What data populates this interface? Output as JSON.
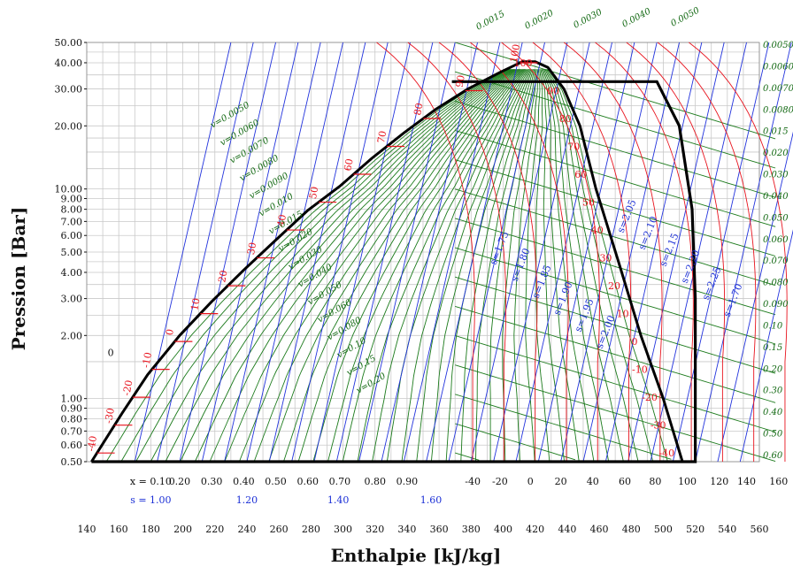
{
  "chart_data": {
    "type": "line",
    "title": "",
    "xlabel": "Enthalpie [kJ/kg]",
    "ylabel": "Pression [Bar]",
    "xlim": [
      140,
      560
    ],
    "ylim": [
      0.5,
      50
    ],
    "y_scale": "log",
    "x_ticks": [
      "140",
      "160",
      "180",
      "200",
      "220",
      "240",
      "260",
      "280",
      "300",
      "320",
      "340",
      "360",
      "380",
      "400",
      "420",
      "440",
      "460",
      "480",
      "500",
      "520",
      "540",
      "560"
    ],
    "y_ticks": [
      {
        "p": 50,
        "label": "50.00"
      },
      {
        "p": 40,
        "label": "40.00"
      },
      {
        "p": 30,
        "label": "30.00"
      },
      {
        "p": 20,
        "label": "20.00"
      },
      {
        "p": 10,
        "label": "10.00"
      },
      {
        "p": 9,
        "label": "9.00"
      },
      {
        "p": 8,
        "label": "8.00"
      },
      {
        "p": 7,
        "label": "7.00"
      },
      {
        "p": 6,
        "label": "6.00"
      },
      {
        "p": 5,
        "label": "5.00"
      },
      {
        "p": 4,
        "label": "4.00"
      },
      {
        "p": 3,
        "label": "3.00"
      },
      {
        "p": 2,
        "label": "2.00"
      },
      {
        "p": 1,
        "label": "1.00"
      },
      {
        "p": 0.9,
        "label": "0.90"
      },
      {
        "p": 0.8,
        "label": "0.80"
      },
      {
        "p": 0.7,
        "label": "0.70"
      },
      {
        "p": 0.6,
        "label": "0.60"
      },
      {
        "p": 0.5,
        "label": "0.50"
      }
    ],
    "quality_labels": [
      {
        "text": "x = 0.10",
        "h": 180
      },
      {
        "text": "0.20",
        "h": 198
      },
      {
        "text": "0.30",
        "h": 218
      },
      {
        "text": "0.40",
        "h": 238
      },
      {
        "text": "0.50",
        "h": 258
      },
      {
        "text": "0.60",
        "h": 278
      },
      {
        "text": "0.70",
        "h": 298
      },
      {
        "text": "0.80",
        "h": 320
      },
      {
        "text": "0.90",
        "h": 340
      }
    ],
    "entropy_bottom_labels": [
      {
        "text": "s = 1.00",
        "h": 180
      },
      {
        "text": "1.20",
        "h": 240
      },
      {
        "text": "1.40",
        "h": 297
      },
      {
        "text": "1.60",
        "h": 355
      }
    ],
    "temperature_bottom_labels": [
      {
        "text": "-40",
        "h": 381
      },
      {
        "text": "-20",
        "h": 398
      },
      {
        "text": "0",
        "h": 417
      },
      {
        "text": "20",
        "h": 436
      },
      {
        "text": "40",
        "h": 456
      },
      {
        "text": "60",
        "h": 476
      },
      {
        "text": "80",
        "h": 495
      },
      {
        "text": "100",
        "h": 515
      },
      {
        "text": "120",
        "h": 535
      },
      {
        "text": "140",
        "h": 552
      },
      {
        "text": "160",
        "h": 572
      }
    ],
    "liquid_side_temperatures": [
      "-40",
      "-30",
      "-20",
      "-10",
      "0",
      "10",
      "20",
      "30",
      "40",
      "50",
      "60",
      "70",
      "80",
      "90",
      "100"
    ],
    "vapor_side_temperatures": [
      "100",
      "90",
      "80",
      "70",
      "60",
      "50",
      "40",
      "30",
      "20",
      "10",
      "0",
      "-10",
      "-20",
      "-30",
      "-40"
    ],
    "specific_volume_right_labels": [
      "0.0050",
      "0.0060",
      "0.0070",
      "0.0080",
      "0.015",
      "0.020",
      "0.030",
      "0.040",
      "0.050",
      "0.060",
      "0.070",
      "0.080",
      "0.090",
      "0.10",
      "0.15",
      "0.20",
      "0.30",
      "0.40",
      "0.50",
      "0.60"
    ],
    "specific_volume_top_labels": [
      "0.0015",
      "0.0020",
      "0.0030",
      "0.0040",
      "0.0050"
    ],
    "specific_volume_inside_labels": [
      "v=0.0050",
      "v=0.0060",
      "v=0.0070",
      "v=0.0080",
      "v=0.0090",
      "v=0.010",
      "v=0.015",
      "v=0.020",
      "v=0.030",
      "v=0.040",
      "v=0.050",
      "v=0.060",
      "v=0.080",
      "v=0.10",
      "v=0.15",
      "v=0.20"
    ],
    "entropy_vapor_labels": [
      "s=1.75",
      "s=1.80",
      "s=1.85",
      "s=1.90",
      "s=1.95",
      "s=2.00",
      "s=2.05",
      "s=2.10",
      "s=2.15",
      "s=2.20",
      "s=2.25",
      "s=1.70"
    ],
    "annotation": "0",
    "saturation_dome": [
      {
        "h": 143,
        "p": 0.5
      },
      {
        "h": 162,
        "p": 0.85
      },
      {
        "h": 178,
        "p": 1.3
      },
      {
        "h": 198,
        "p": 2.0
      },
      {
        "h": 218,
        "p": 2.9
      },
      {
        "h": 238,
        "p": 4.1
      },
      {
        "h": 258,
        "p": 5.7
      },
      {
        "h": 278,
        "p": 7.9
      },
      {
        "h": 298,
        "p": 10.3
      },
      {
        "h": 318,
        "p": 14.0
      },
      {
        "h": 338,
        "p": 18.5
      },
      {
        "h": 358,
        "p": 24.0
      },
      {
        "h": 378,
        "p": 30.0
      },
      {
        "h": 398,
        "p": 36.0
      },
      {
        "h": 412,
        "p": 40.5
      },
      {
        "h": 420,
        "p": 40.5
      },
      {
        "h": 428,
        "p": 38.0
      },
      {
        "h": 438,
        "p": 30.0
      },
      {
        "h": 448,
        "p": 20.0
      },
      {
        "h": 458,
        "p": 10.0
      },
      {
        "h": 472,
        "p": 4.5
      },
      {
        "h": 486,
        "p": 2.0
      },
      {
        "h": 500,
        "p": 1.0
      },
      {
        "h": 512,
        "p": 0.5
      }
    ],
    "cycle": [
      {
        "h": 143,
        "p": 0.5
      },
      {
        "h": 520,
        "p": 0.5
      },
      {
        "h": 520,
        "p": 3.0
      },
      {
        "h": 518,
        "p": 8.0
      },
      {
        "h": 510,
        "p": 20.0
      },
      {
        "h": 496,
        "p": 32.5
      },
      {
        "h": 368,
        "p": 32.5
      }
    ]
  }
}
